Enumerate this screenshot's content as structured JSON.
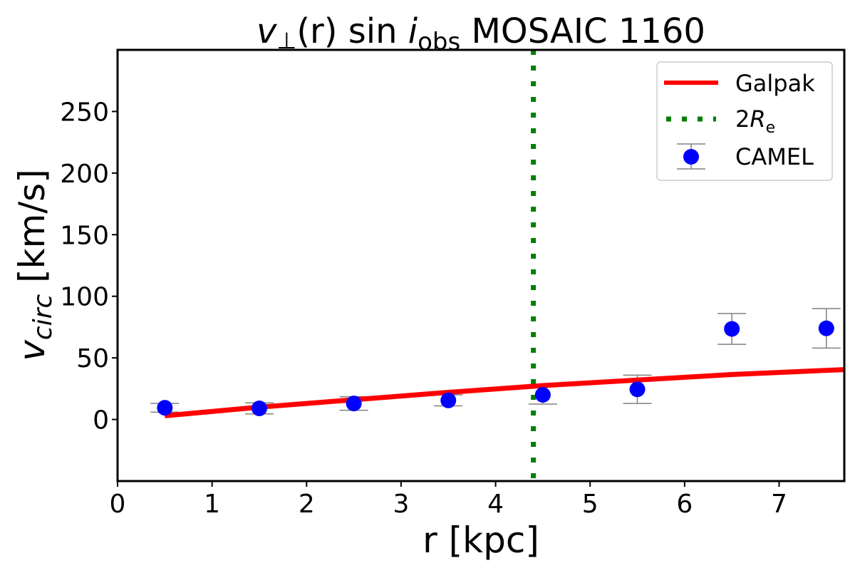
{
  "chart_data": {
    "type": "scatter",
    "title_parts": {
      "v": "v",
      "perp": "⊥",
      "r": "(r) sin ",
      "i": "i",
      "obs": "obs",
      "rest": " MOSAIC 1160"
    },
    "xlabel": "r [kpc]",
    "ylabel_parts": {
      "v": "v",
      "sub": "circ",
      "unit": " [km/s]"
    },
    "xlim": [
      0,
      7.69
    ],
    "ylim": [
      -50,
      300
    ],
    "xticks": [
      0,
      1,
      2,
      3,
      4,
      5,
      6,
      7
    ],
    "yticks": [
      0,
      50,
      100,
      150,
      200,
      250
    ],
    "grid": false,
    "legend_placement": "top-right",
    "legend": {
      "galpak": "Galpak",
      "re_num": "2",
      "re_R": "R",
      "re_sub": "e",
      "camel": "CAMEL"
    },
    "series": [
      {
        "name": "Galpak",
        "kind": "line",
        "color": "#ff0000",
        "x": [
          0.5,
          1.5,
          2.5,
          3.5,
          4.5,
          5.5,
          6.5,
          7.69
        ],
        "y": [
          3,
          10,
          16,
          22,
          27.5,
          32,
          36.5,
          40.5
        ]
      },
      {
        "name": "2Re",
        "kind": "vline",
        "color": "#008000",
        "x": 4.4
      },
      {
        "name": "CAMEL",
        "kind": "errorbar",
        "color": "#0000ff",
        "errcolor": "#808080",
        "x": [
          0.5,
          1.5,
          2.5,
          3.5,
          4.5,
          5.5,
          6.5,
          7.5
        ],
        "y": [
          9.5,
          9,
          13,
          15.5,
          20,
          24.5,
          73.5,
          74
        ],
        "err": [
          3.5,
          4.5,
          5.5,
          4.5,
          7.5,
          11.5,
          12.5,
          16
        ]
      }
    ]
  }
}
